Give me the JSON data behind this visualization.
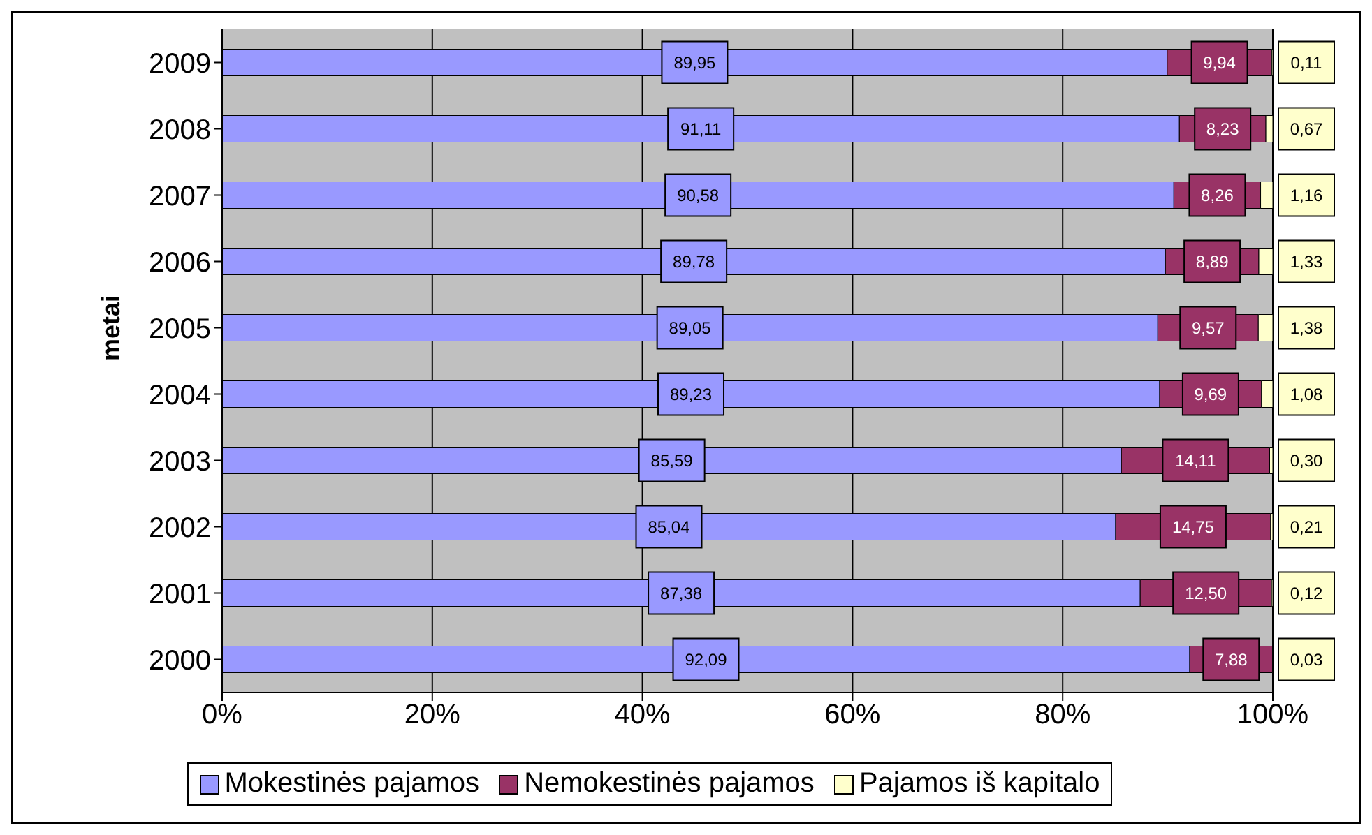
{
  "chart_data": {
    "type": "bar",
    "orientation": "horizontal",
    "stacked": true,
    "ylabel": "metai",
    "categories": [
      "2009",
      "2008",
      "2007",
      "2006",
      "2005",
      "2004",
      "2003",
      "2002",
      "2001",
      "2000"
    ],
    "series": [
      {
        "name": "Mokestinės pajamos",
        "color": "#9999ff",
        "values": [
          89.95,
          91.11,
          90.58,
          89.78,
          89.05,
          89.23,
          85.59,
          85.04,
          87.38,
          92.09
        ],
        "value_labels": [
          "89,95",
          "91,11",
          "90,58",
          "89,78",
          "89,05",
          "89,23",
          "85,59",
          "85,04",
          "87,38",
          "92,09"
        ]
      },
      {
        "name": "Nemokestinės pajamos",
        "color": "#993366",
        "values": [
          9.94,
          8.23,
          8.26,
          8.89,
          9.57,
          9.69,
          14.11,
          14.75,
          12.5,
          7.88
        ],
        "value_labels": [
          "9,94",
          "8,23",
          "8,26",
          "8,89",
          "9,57",
          "9,69",
          "14,11",
          "14,75",
          "12,50",
          "7,88"
        ]
      },
      {
        "name": "Pajamos iš kapitalo",
        "color": "#ffffcc",
        "values": [
          0.11,
          0.67,
          1.16,
          1.33,
          1.38,
          1.08,
          0.3,
          0.21,
          0.12,
          0.03
        ],
        "value_labels": [
          "0,11",
          "0,67",
          "1,16",
          "1,33",
          "1,38",
          "1,08",
          "0,30",
          "0,21",
          "0,12",
          "0,03"
        ]
      }
    ],
    "xlim": [
      0,
      100
    ],
    "xticks": [
      {
        "value": 0,
        "label": "0%"
      },
      {
        "value": 20,
        "label": "20%"
      },
      {
        "value": 40,
        "label": "40%"
      },
      {
        "value": 60,
        "label": "60%"
      },
      {
        "value": 80,
        "label": "80%"
      },
      {
        "value": 100,
        "label": "100%"
      }
    ],
    "grid": "x",
    "legend": "bottom"
  }
}
